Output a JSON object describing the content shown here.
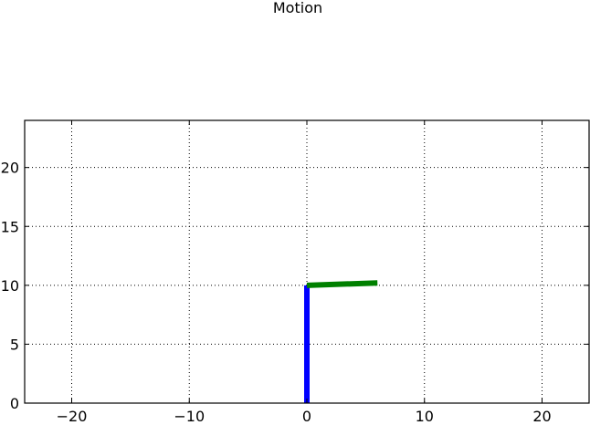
{
  "chart_data": {
    "type": "line",
    "title": "Motion",
    "xlabel": "",
    "ylabel": "",
    "xlim": [
      -24,
      24
    ],
    "ylim": [
      0,
      24
    ],
    "xticks": [
      -20,
      -10,
      0,
      10,
      20
    ],
    "xtick_labels": [
      "−20",
      "−10",
      "0",
      "10",
      "20"
    ],
    "yticks": [
      0,
      5,
      10,
      15,
      20
    ],
    "ytick_labels": [
      "0",
      "5",
      "10",
      "15",
      "20"
    ],
    "grid": true,
    "series": [
      {
        "color": "#0000ff",
        "x": [
          0,
          0
        ],
        "y": [
          0,
          10
        ]
      },
      {
        "color": "#008000",
        "x": [
          0,
          6
        ],
        "y": [
          10,
          10.2
        ]
      }
    ]
  }
}
